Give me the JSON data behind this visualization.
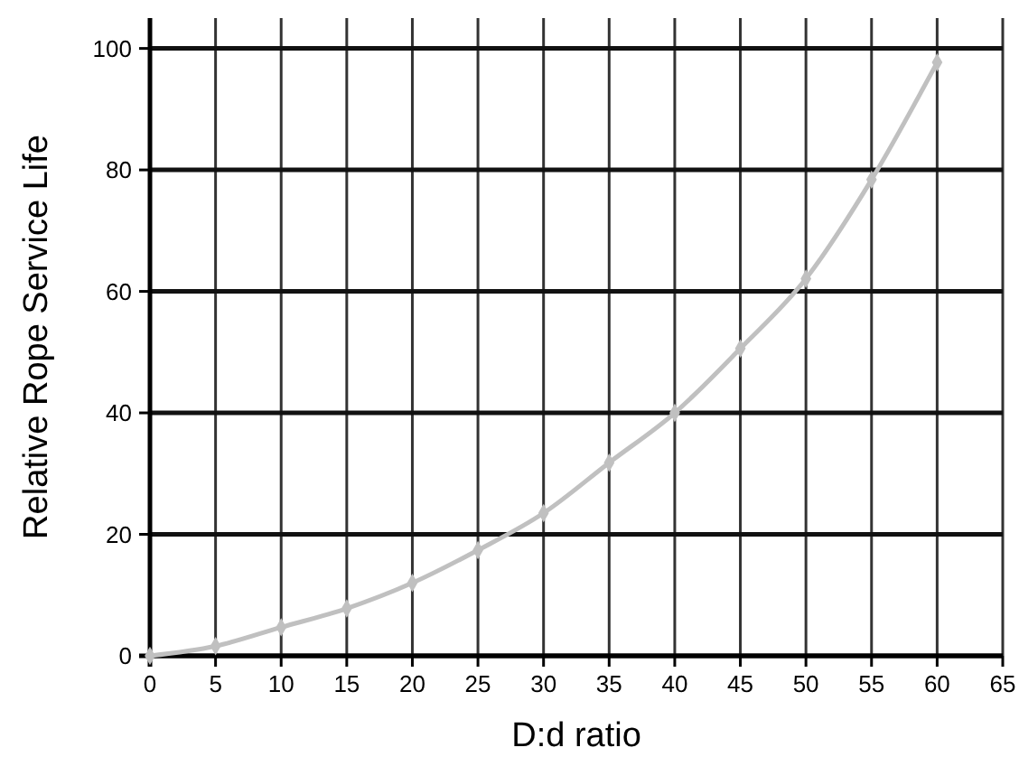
{
  "chart_data": {
    "type": "line",
    "xlabel": "D:d ratio",
    "ylabel": "Relative Rope Service Life",
    "x": [
      0,
      5,
      10,
      15,
      20,
      25,
      30,
      35,
      40,
      45,
      50,
      55,
      60
    ],
    "series": [
      {
        "color": "#c0c0c0",
        "values": [
          0,
          1.6,
          4.7,
          7.8,
          12,
          17.4,
          23.5,
          31.8,
          40,
          50.6,
          62.1,
          78.4,
          97.7
        ]
      }
    ],
    "xlim": [
      0,
      65
    ],
    "xticks": [
      0,
      5,
      10,
      15,
      20,
      25,
      30,
      35,
      40,
      45,
      50,
      55,
      60,
      65
    ],
    "ylim": [
      0,
      105
    ],
    "yticks": [
      0,
      20,
      40,
      60,
      80,
      100
    ],
    "grid": true,
    "marker": "diamond",
    "line_style": "solid"
  }
}
